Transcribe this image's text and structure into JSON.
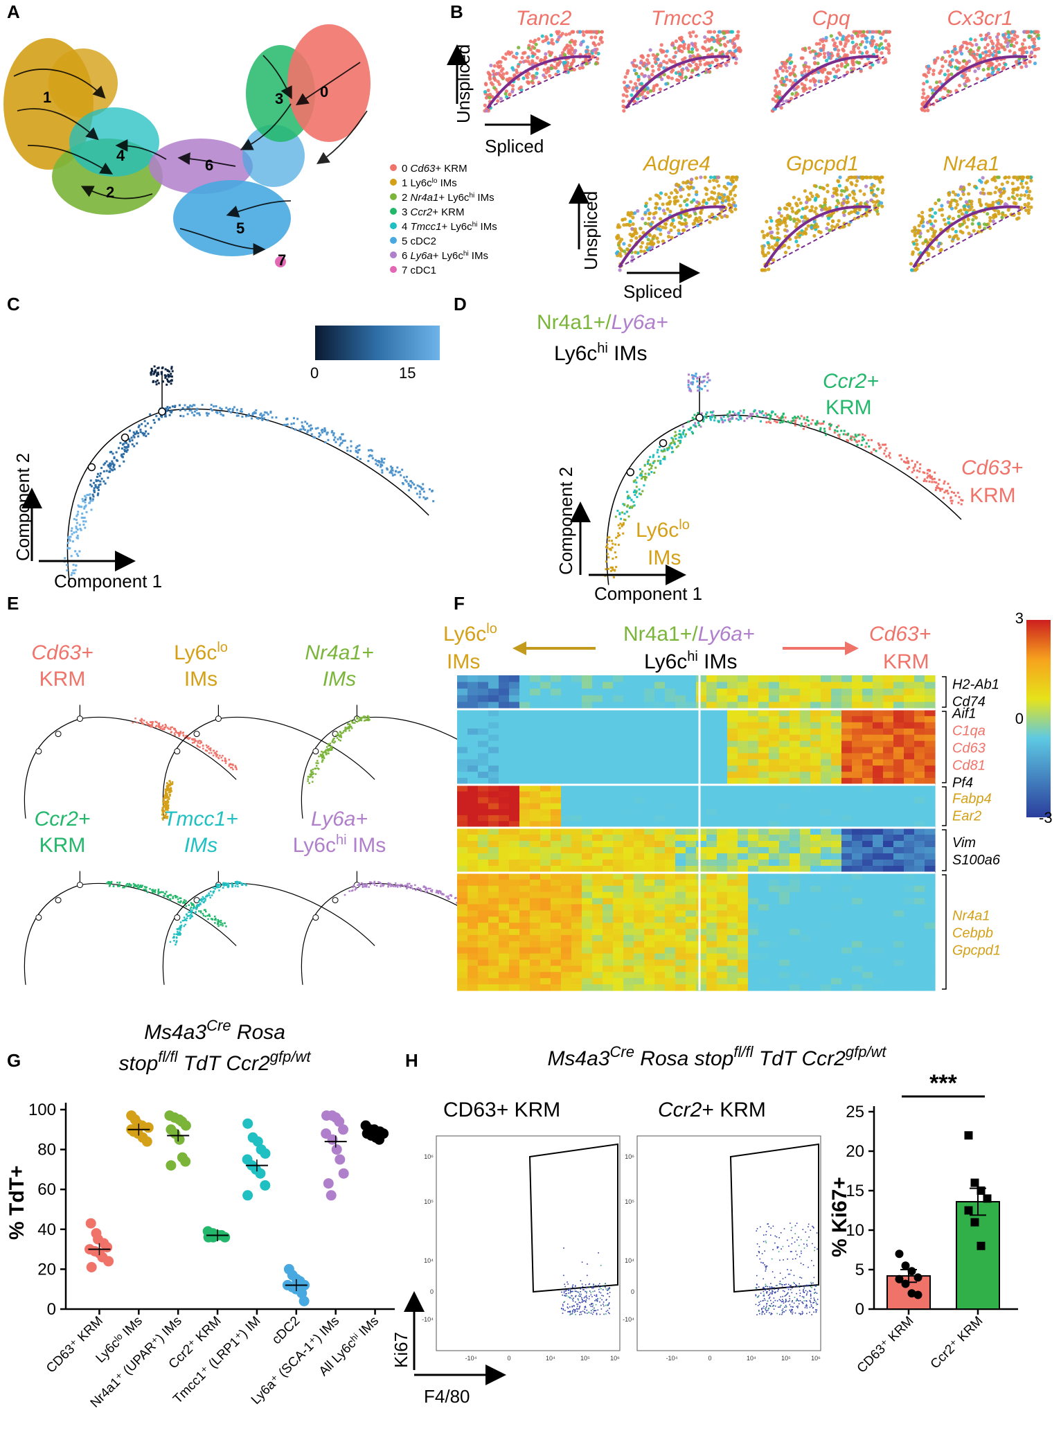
{
  "colors": {
    "c0": "#f0736a",
    "c1": "#d4a018",
    "c2": "#7ab53a",
    "c3": "#22b76a",
    "c4": "#1fbfc2",
    "c5": "#48a8e0",
    "c6": "#b07fcb",
    "c7": "#e467b5",
    "black": "#000000",
    "traj": "#7b2d8e"
  },
  "panels": {
    "A": {
      "label": "A",
      "cluster_numbers": [
        "1",
        "4",
        "2",
        "3",
        "0",
        "6",
        "5",
        "7"
      ],
      "legend": [
        {
          "num": "0",
          "ital": "Cd63",
          "rest": "+ KRM",
          "sup": "",
          "rest2": "",
          "color": "c0"
        },
        {
          "num": "1",
          "ital": "",
          "rest": "Ly6c",
          "sup": "lo",
          "rest2": " IMs",
          "color": "c1"
        },
        {
          "num": "2",
          "ital": "Nr4a1",
          "rest": "+ Ly6c",
          "sup": "hi",
          "rest2": " IMs",
          "color": "c2"
        },
        {
          "num": "3",
          "ital": "Ccr2",
          "rest": "+ KRM",
          "sup": "",
          "rest2": "",
          "color": "c3"
        },
        {
          "num": "4",
          "ital": "Tmcc1",
          "rest": "+ Ly6c",
          "sup": "hi",
          "rest2": " IMs",
          "color": "c4"
        },
        {
          "num": "5",
          "ital": "",
          "rest": "cDC2",
          "sup": "",
          "rest2": "",
          "color": "c5"
        },
        {
          "num": "6",
          "ital": "Ly6a",
          "rest": "+ Ly6c",
          "sup": "hi",
          "rest2": " IMs",
          "color": "c6"
        },
        {
          "num": "7",
          "ital": "",
          "rest": "cDC1",
          "sup": "",
          "rest2": "",
          "color": "c7"
        }
      ]
    },
    "B": {
      "label": "B",
      "genes_row1": [
        "Tanc2",
        "Tmcc3",
        "Cpq",
        "Cx3cr1"
      ],
      "genes_row2": [
        "Adgre4",
        "Gpcpd1",
        "Nr4a1"
      ],
      "ylabel": "Unspliced",
      "xlabel": "Spliced"
    },
    "C": {
      "label": "C",
      "colorbar_ticks": [
        "0",
        "15"
      ],
      "xlabel": "Component 1",
      "ylabel": "Component 2"
    },
    "D": {
      "label": "D",
      "top_a": "Nr4a1+/",
      "top_b": "Ly6a+",
      "top_c": "Ly6c",
      "top_sup": "hi",
      "top_d": " IMs",
      "ccr2_a": "Ccr2+",
      "ccr2_b": "KRM",
      "cd63_a": "Cd63+",
      "cd63_b": "KRM",
      "ly6clo_a": "Ly6c",
      "ly6clo_sup": "lo",
      "ly6clo_b": "IMs",
      "xlabel": "Component 1",
      "ylabel": "Component 2"
    },
    "E": {
      "label": "E",
      "titles": [
        {
          "l1": "Cd63+",
          "l2": "KRM",
          "color": "c0",
          "ital": true
        },
        {
          "l1": "Ly6c",
          "sup": "lo",
          "l2": "IMs",
          "color": "c1",
          "ital": false
        },
        {
          "l1": "Nr4a1+",
          "l2": "IMs",
          "color": "c2",
          "ital": true
        },
        {
          "l1": "Ccr2+",
          "l2": "KRM",
          "color": "c3",
          "ital": true
        },
        {
          "l1": "Tmcc1+",
          "l2": "IMs",
          "color": "c4",
          "ital": true
        },
        {
          "l1": "Ly6a+",
          "l2": "Ly6c",
          "sup2": "hi",
          "l2b": " IMs",
          "color": "c6",
          "ital": true
        }
      ]
    },
    "F": {
      "label": "F",
      "left_a": "Ly6c",
      "left_sup": "lo",
      "left_b": "IMs",
      "mid_a": "Nr4a1+/",
      "mid_b": "Ly6a+",
      "mid_c": "Ly6c",
      "mid_sup": "hi",
      "mid_d": " IMs",
      "right_a": "Cd63+",
      "right_b": "KRM",
      "scale_ticks": [
        "3",
        "0",
        "-3"
      ],
      "gene_groups": [
        {
          "genes": [
            "H2-Ab1",
            "Cd74"
          ],
          "colors": [
            "black",
            "black"
          ]
        },
        {
          "genes": [
            "Aif1",
            "C1qa",
            "Cd63",
            "Cd81",
            "Pf4"
          ],
          "colors": [
            "black",
            "c0",
            "c0",
            "c0",
            "black"
          ]
        },
        {
          "genes": [
            "Fabp4",
            "Ear2"
          ],
          "colors": [
            "c1",
            "c1"
          ]
        },
        {
          "genes": [
            "Vim",
            "S100a6"
          ],
          "colors": [
            "black",
            "black"
          ]
        },
        {
          "genes": [
            "Nr4a1",
            "Cebpb",
            "Gpcpd1"
          ],
          "colors": [
            "c1",
            "c1",
            "c1"
          ]
        }
      ]
    },
    "G": {
      "label": "G",
      "title1_a": "Ms4a3",
      "title1_sup": "Cre",
      "title1_b": " Rosa",
      "title2_a": "stop",
      "title2_sup": "fl/fl",
      "title2_b": " TdT Ccr2",
      "title2_sup2": "gfp/wt",
      "ylabel": "% TdT+",
      "yticks": [
        "0",
        "20",
        "40",
        "60",
        "80",
        "100"
      ],
      "categories": [
        "CD63⁺ KRM",
        "Ly6cˡᵒ IMs",
        "Nr4a1⁺ (UPAR⁺) IMs",
        "Ccr2⁺ KRM",
        "Tmcc1⁺ (LRP1⁺) IM",
        "cDC2",
        "Ly6a⁺ (SCA-1⁺) IMs",
        "All Ly6cʰⁱ IMs"
      ]
    },
    "H": {
      "label": "H",
      "title_a": "Ms4a3",
      "title_sup": "Cre",
      "title_b": " Rosa stop",
      "title_sup2": "fl/fl",
      "title_c": " TdT Ccr2",
      "title_sup3": "gfp/wt",
      "flow_title1": "CD63+ KRM",
      "flow_title2_a": "Ccr2",
      "flow_title2_b": "+ KRM",
      "flow_yaxis": "Ki67",
      "flow_xaxis": "F4/80",
      "flow_yticks": [
        "10⁶",
        "10⁵",
        "10⁴",
        "0",
        "-10⁴"
      ],
      "flow_xticks": [
        "-10⁴",
        "0",
        "10⁴",
        "10⁵",
        "10⁶"
      ],
      "bar_ylabel": "% Ki67+",
      "bar_yticks": [
        "0",
        "5",
        "10",
        "15",
        "20",
        "25"
      ],
      "bar_categories": [
        "CD63⁺ KRM",
        "Ccr2⁺ KRM"
      ],
      "significance": "***"
    }
  },
  "chart_data": [
    {
      "type": "scatter",
      "title": "% TdT+ (Ms4a3Cre Rosa stopfl/fl TdT Ccr2gfp/wt)",
      "ylabel": "% TdT+",
      "ylim": [
        0,
        100
      ],
      "categories": [
        "CD63+ KRM",
        "Ly6clo IMs",
        "Nr4a1+ (UPAR+) IMs",
        "Ccr2+ KRM",
        "Tmcc1+ (LRP1+) IM",
        "cDC2",
        "Ly6a+ (SCA-1+) IMs",
        "All Ly6chi IMs"
      ],
      "colors": [
        "#f0736a",
        "#d4a018",
        "#7ab53a",
        "#22b76a",
        "#1fbfc2",
        "#48a8e0",
        "#b07fcb",
        "#000000"
      ],
      "means": [
        30,
        90,
        87,
        37,
        72,
        12,
        84,
        88
      ],
      "points": [
        [
          43,
          38,
          35,
          33,
          31,
          30,
          29,
          28,
          26,
          24,
          21
        ],
        [
          97,
          95,
          93,
          92,
          91,
          90,
          89,
          88,
          86,
          84
        ],
        [
          97,
          96,
          95,
          94,
          92,
          90,
          88,
          85,
          76,
          74,
          72
        ],
        [
          39,
          38,
          37,
          37,
          36,
          36,
          36,
          37
        ],
        [
          93,
          86,
          84,
          80,
          78,
          75,
          72,
          70,
          68,
          62,
          57
        ],
        [
          20,
          17,
          15,
          14,
          12,
          12,
          11,
          10,
          8,
          4
        ],
        [
          97,
          97,
          96,
          94,
          90,
          88,
          85,
          80,
          75,
          68,
          63,
          57
        ],
        [
          92,
          90,
          90,
          89,
          88,
          88,
          87,
          86,
          85
        ]
      ]
    },
    {
      "type": "bar",
      "title": "% Ki67+",
      "ylabel": "% Ki67+",
      "ylim": [
        0,
        25
      ],
      "categories": [
        "CD63+ KRM",
        "Ccr2+ KRM"
      ],
      "values": [
        4.2,
        13.6
      ],
      "errors": [
        0.8,
        1.7
      ],
      "colors": [
        "#f0736a",
        "#31b04a"
      ],
      "points": [
        [
          7.0,
          5.5,
          4.8,
          4.0,
          3.8,
          3.2,
          2.0,
          1.8
        ],
        [
          22.0,
          16.0,
          15.0,
          14.0,
          12.5,
          11.0,
          8.0
        ]
      ]
    }
  ]
}
